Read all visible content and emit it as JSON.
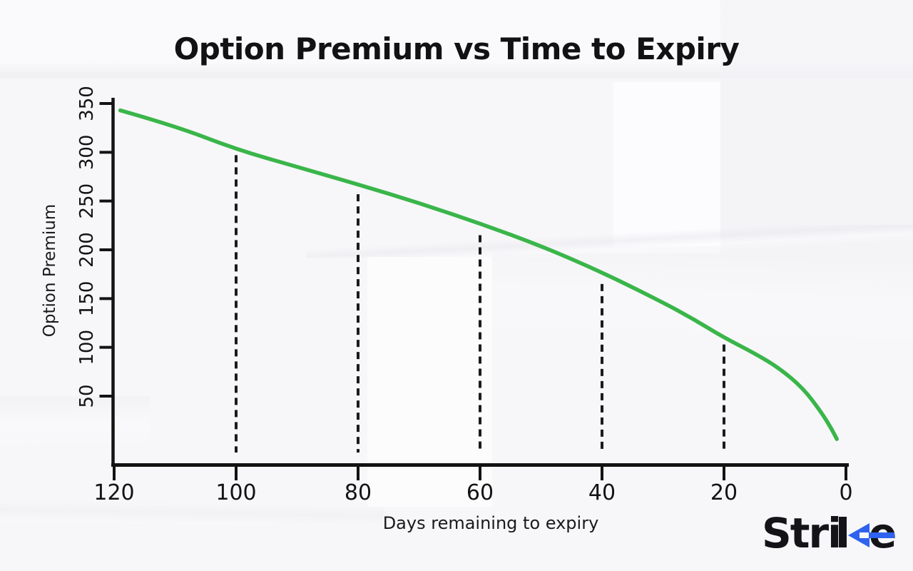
{
  "page": {
    "title": "Option Premium vs Time to Expiry"
  },
  "chart_data": {
    "type": "line",
    "title": "Option Premium vs Time to Expiry",
    "xlabel": "Days remaining to expiry",
    "ylabel": "Option Premium",
    "x_axis_reversed": true,
    "xlim": [
      120,
      0
    ],
    "ylim": [
      0,
      350
    ],
    "x_ticks": [
      120,
      100,
      80,
      60,
      40,
      20,
      0
    ],
    "y_ticks": [
      350,
      300,
      250,
      200,
      150,
      100,
      50
    ],
    "grid": false,
    "legend": "none",
    "curve_color": "#3ab54a",
    "axis_color": "#131313",
    "guide_color": "#1b1b1b",
    "series": [
      {
        "name": "Option Premium",
        "points": [
          {
            "day": 119,
            "premium": 343
          },
          {
            "day": 110,
            "premium": 327
          },
          {
            "day": 100,
            "premium": 303
          },
          {
            "day": 90,
            "premium": 285
          },
          {
            "day": 80,
            "premium": 267
          },
          {
            "day": 70,
            "premium": 248
          },
          {
            "day": 60,
            "premium": 227
          },
          {
            "day": 50,
            "premium": 204
          },
          {
            "day": 40,
            "premium": 177
          },
          {
            "day": 30,
            "premium": 146
          },
          {
            "day": 25,
            "premium": 129
          },
          {
            "day": 20,
            "premium": 110
          },
          {
            "day": 15,
            "premium": 94
          },
          {
            "day": 11,
            "premium": 79
          },
          {
            "day": 7,
            "premium": 58
          },
          {
            "day": 4,
            "premium": 33
          },
          {
            "day": 2.5,
            "premium": 18
          },
          {
            "day": 1.5,
            "premium": 6
          }
        ]
      }
    ],
    "dashed_guides": [
      {
        "day": 100,
        "top": 297,
        "bottom": -6
      },
      {
        "day": 80,
        "top": 257,
        "bottom": -6
      },
      {
        "day": 60,
        "top": 215,
        "bottom": -6
      },
      {
        "day": 40,
        "top": 165,
        "bottom": -6
      },
      {
        "day": 20,
        "top": 103,
        "bottom": -6
      }
    ]
  },
  "logo": {
    "text": "Strike",
    "prefix": "Stri",
    "suffix_letter": "e",
    "accent_color": "#2e62ef",
    "text_color": "#141418"
  }
}
